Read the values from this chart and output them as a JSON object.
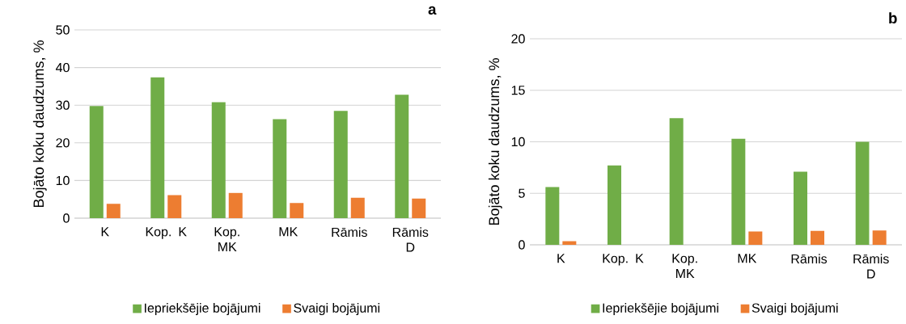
{
  "chart_data": [
    {
      "type": "bar",
      "title": "a",
      "ylabel": "Bojāto koku daudzums, %",
      "categories": [
        "K",
        "Kop. K",
        "Kop. MK",
        "MK",
        "Rāmis",
        "Rāmis D"
      ],
      "series": [
        {
          "name": "Iepriekšējie bojājumi",
          "color": "#70ad47",
          "values": [
            29.8,
            37.4,
            30.8,
            26.3,
            28.5,
            32.8
          ]
        },
        {
          "name": "Svaigi bojājumi",
          "color": "#ed7d31",
          "values": [
            3.8,
            6.1,
            6.7,
            4.0,
            5.4,
            5.2
          ]
        }
      ],
      "ylim": [
        0,
        50
      ],
      "yticks": [
        0,
        10,
        20,
        30,
        40,
        50
      ],
      "grid": "y",
      "legend": "bottom"
    },
    {
      "type": "bar",
      "title": "b",
      "ylabel": "Bojāto koku daudzums, %",
      "categories": [
        "K",
        "Kop. K",
        "Kop. MK",
        "MK",
        "Rāmis",
        "Rāmis D"
      ],
      "series": [
        {
          "name": "Iepriekšējie bojājumi",
          "color": "#70ad47",
          "values": [
            5.6,
            7.7,
            12.3,
            10.3,
            7.1,
            10.0
          ]
        },
        {
          "name": "Svaigi bojājumi",
          "color": "#ed7d31",
          "values": [
            0.36,
            0,
            0,
            1.3,
            1.35,
            1.4
          ]
        }
      ],
      "ylim": [
        0,
        20
      ],
      "yticks": [
        0,
        5,
        10,
        15,
        20
      ],
      "grid": "y",
      "legend": "bottom"
    }
  ]
}
